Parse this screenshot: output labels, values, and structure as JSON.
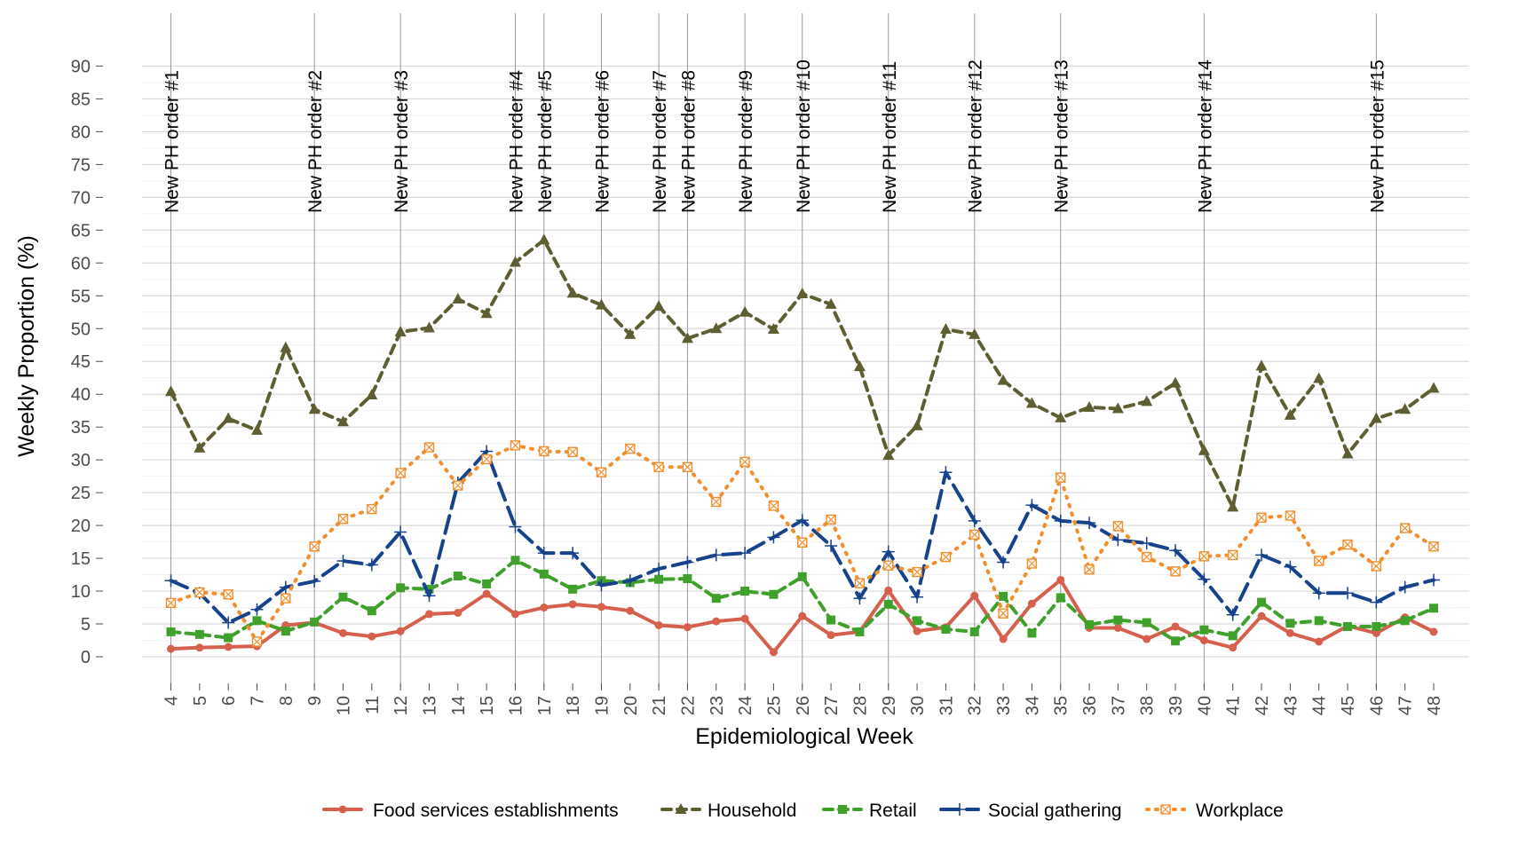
{
  "chart_data": {
    "type": "line",
    "xlabel": "Epidemiological Week",
    "ylabel": "Weekly Proportion (%)",
    "xlim": [
      4,
      48
    ],
    "ylim": [
      0,
      90
    ],
    "y_ticks": [
      0,
      5,
      10,
      15,
      20,
      25,
      30,
      35,
      40,
      45,
      50,
      55,
      60,
      65,
      70,
      75,
      80,
      85,
      90
    ],
    "x": [
      4,
      5,
      6,
      7,
      8,
      9,
      10,
      11,
      12,
      13,
      14,
      15,
      16,
      17,
      18,
      19,
      20,
      21,
      22,
      23,
      24,
      25,
      26,
      27,
      28,
      29,
      30,
      31,
      32,
      33,
      34,
      35,
      36,
      37,
      38,
      39,
      40,
      41,
      42,
      43,
      44,
      45,
      46,
      47,
      48
    ],
    "x_tick_labels": [
      "4",
      "5",
      "6",
      "7",
      "8",
      "9",
      "10",
      "11",
      "12",
      "13",
      "14",
      "15",
      "16",
      "17",
      "18",
      "19",
      "20",
      "21",
      "22",
      "23",
      "24",
      "25",
      "26",
      "27",
      "28",
      "29",
      "30",
      "31",
      "32",
      "33",
      "34",
      "35",
      "36",
      "37",
      "38",
      "39",
      "40",
      "41",
      "42",
      "43",
      "44",
      "45",
      "46",
      "47",
      "48"
    ],
    "grid": true,
    "legend_position": "bottom",
    "public_health_orders": [
      {
        "week": 4,
        "label": "New PH order #1"
      },
      {
        "week": 9,
        "label": "New PH order #2"
      },
      {
        "week": 12,
        "label": "New PH order #3"
      },
      {
        "week": 16,
        "label": "New PH order #4"
      },
      {
        "week": 17,
        "label": "New PH order #5"
      },
      {
        "week": 19,
        "label": "New PH order #6"
      },
      {
        "week": 21,
        "label": "New PH order #7"
      },
      {
        "week": 22,
        "label": "New PH order #8"
      },
      {
        "week": 24,
        "label": "New PH order #9"
      },
      {
        "week": 26,
        "label": "New PH order #10"
      },
      {
        "week": 29,
        "label": "New PH order #11"
      },
      {
        "week": 32,
        "label": "New PH order #12"
      },
      {
        "week": 35,
        "label": "New PH order #13"
      },
      {
        "week": 40,
        "label": "New PH order #14"
      },
      {
        "week": 46,
        "label": "New PH order #15"
      }
    ],
    "series": [
      {
        "name": "Food services establishments",
        "color": "#D6604D",
        "line_style": "solid",
        "marker": "circle",
        "values": [
          1.2,
          1.4,
          1.5,
          1.6,
          4.8,
          5.2,
          3.6,
          3.1,
          3.9,
          6.5,
          6.7,
          9.6,
          6.5,
          7.5,
          8.0,
          7.6,
          7.0,
          4.8,
          4.5,
          5.4,
          5.8,
          0.7,
          6.2,
          3.3,
          3.8,
          10.1,
          3.9,
          4.5,
          9.3,
          2.7,
          8.1,
          11.7,
          4.4,
          4.4,
          2.7,
          4.6,
          2.5,
          1.4,
          6.2,
          3.6,
          2.3,
          4.7,
          3.6,
          6.0,
          3.8
        ]
      },
      {
        "name": "Household",
        "color": "#5F5E32",
        "line_style": "dashed",
        "marker": "triangle",
        "values": [
          40.4,
          31.8,
          36.3,
          34.5,
          47.1,
          37.7,
          35.8,
          39.9,
          49.5,
          50.1,
          54.5,
          52.3,
          60.1,
          63.5,
          55.4,
          53.6,
          49.1,
          53.4,
          48.5,
          50.0,
          52.5,
          49.9,
          55.3,
          53.7,
          44.2,
          30.7,
          35.2,
          49.9,
          49.1,
          42.1,
          38.6,
          36.4,
          38.0,
          37.8,
          38.9,
          41.7,
          31.4,
          22.8,
          44.3,
          36.8,
          42.4,
          30.9,
          36.3,
          37.7,
          40.9
        ]
      },
      {
        "name": "Retail",
        "color": "#3FA02B",
        "line_style": "dashed",
        "marker": "square",
        "values": [
          3.8,
          3.4,
          2.9,
          5.5,
          3.9,
          5.3,
          9.1,
          7.0,
          10.5,
          10.3,
          12.3,
          11.1,
          14.7,
          12.6,
          10.3,
          11.6,
          11.3,
          11.8,
          11.9,
          8.9,
          10.0,
          9.5,
          12.2,
          5.6,
          3.8,
          8.0,
          5.5,
          4.2,
          3.8,
          9.2,
          3.6,
          9.0,
          4.9,
          5.6,
          5.2,
          2.4,
          4.1,
          3.2,
          8.3,
          5.1,
          5.5,
          4.6,
          4.6,
          5.5,
          7.4
        ]
      },
      {
        "name": "Social gathering",
        "color": "#17428C",
        "line_style": "longdash",
        "marker": "plus",
        "values": [
          11.6,
          9.7,
          5.2,
          7.2,
          10.6,
          11.5,
          14.6,
          14.0,
          19.0,
          9.3,
          26.5,
          31.3,
          19.8,
          15.8,
          15.8,
          10.9,
          11.6,
          13.4,
          14.4,
          15.5,
          15.8,
          18.2,
          20.8,
          16.9,
          8.9,
          16.0,
          9.1,
          28.1,
          20.7,
          14.4,
          23.1,
          20.7,
          20.4,
          17.8,
          17.3,
          16.2,
          11.8,
          6.4,
          15.5,
          13.7,
          9.7,
          9.7,
          8.3,
          10.6,
          11.7
        ]
      },
      {
        "name": "Workplace",
        "color": "#F28E2B",
        "line_style": "dotted",
        "marker": "boxed-x",
        "values": [
          8.2,
          9.8,
          9.5,
          2.3,
          8.9,
          16.8,
          21.0,
          22.5,
          28.0,
          31.9,
          26.1,
          30.1,
          32.2,
          31.3,
          31.2,
          28.1,
          31.7,
          28.9,
          28.9,
          23.6,
          29.7,
          23.0,
          17.4,
          20.9,
          11.2,
          13.9,
          12.9,
          15.2,
          18.6,
          6.6,
          14.2,
          27.3,
          13.3,
          19.9,
          15.2,
          13.0,
          15.3,
          15.5,
          21.2,
          21.5,
          14.6,
          17.1,
          13.8,
          19.6,
          16.8
        ]
      }
    ]
  }
}
